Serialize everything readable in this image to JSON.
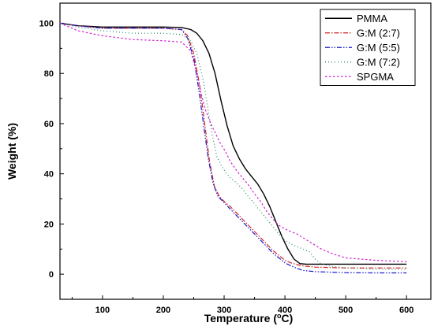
{
  "chart_data": {
    "type": "line",
    "xlabel_main": "Temperature (",
    "xlabel_degree": "o",
    "xlabel_unit": "C)",
    "ylabel": "Weight (%)",
    "xlim": [
      30,
      640
    ],
    "ylim": [
      -10,
      108
    ],
    "x_ticks": [
      100,
      200,
      300,
      400,
      500,
      600
    ],
    "y_ticks": [
      0,
      20,
      40,
      60,
      80,
      100
    ],
    "legend_position": "top-right",
    "grid": false,
    "series": [
      {
        "name": "PMMA",
        "color": "#000000",
        "dash": "",
        "x": [
          30,
          60,
          100,
          150,
          200,
          230,
          245,
          255,
          265,
          275,
          285,
          295,
          305,
          315,
          325,
          335,
          345,
          355,
          365,
          375,
          385,
          395,
          405,
          415,
          425,
          435,
          450,
          500,
          550,
          600
        ],
        "y": [
          100,
          99,
          98.5,
          98.5,
          98.5,
          98.3,
          97.5,
          96,
          93,
          88,
          80,
          69,
          59,
          51,
          46,
          42,
          39,
          36,
          32,
          27,
          21,
          15,
          10,
          6,
          4.2,
          4,
          4,
          4,
          4,
          4
        ]
      },
      {
        "name": "G:M (2:7)",
        "color": "#d42020",
        "dash": "6,2,1.5,2",
        "x": [
          30,
          60,
          100,
          150,
          200,
          230,
          240,
          250,
          260,
          268,
          276,
          284,
          292,
          300,
          310,
          320,
          330,
          340,
          350,
          360,
          370,
          380,
          390,
          400,
          410,
          420,
          430,
          450,
          500,
          550,
          600
        ],
        "y": [
          100,
          99,
          98,
          98,
          98,
          97.5,
          95,
          88,
          75,
          60,
          45,
          35,
          31,
          29,
          27,
          24.5,
          22,
          19.5,
          17,
          14.5,
          12,
          9.5,
          7.5,
          5.5,
          4.5,
          3.8,
          3.3,
          2.8,
          2.5,
          2.5,
          2.5
        ]
      },
      {
        "name": "G:M (5:5)",
        "color": "#1818c8",
        "dash": "6,2,1.5,2,1.5,2",
        "x": [
          30,
          60,
          100,
          150,
          200,
          230,
          240,
          250,
          258,
          266,
          274,
          282,
          290,
          300,
          310,
          320,
          330,
          340,
          350,
          360,
          370,
          380,
          390,
          400,
          410,
          420,
          430,
          450,
          500,
          550,
          600
        ],
        "y": [
          100,
          99,
          98,
          98,
          98,
          97.5,
          94,
          86,
          74,
          60,
          46,
          36,
          31,
          28.5,
          26,
          23.5,
          21,
          18.5,
          16,
          13.5,
          11,
          8.5,
          6.5,
          4.5,
          3.3,
          2.3,
          1.5,
          1,
          0.6,
          0.5,
          0.5
        ]
      },
      {
        "name": "G:M (7:2)",
        "color": "#1f8a5a",
        "dash": "1,3",
        "x": [
          30,
          60,
          100,
          150,
          200,
          230,
          245,
          255,
          265,
          272,
          280,
          288,
          296,
          304,
          312,
          320,
          330,
          340,
          350,
          360,
          370,
          380,
          390,
          400,
          410,
          420,
          430,
          440,
          450,
          460,
          480,
          500,
          550,
          600
        ],
        "y": [
          100,
          98.5,
          97,
          96,
          96,
          95.5,
          93,
          88,
          78,
          68,
          56,
          47,
          43,
          40,
          38,
          36.5,
          34,
          31,
          28,
          25,
          22,
          19,
          16,
          13.5,
          12,
          11,
          10,
          9,
          6,
          4,
          3,
          2.5,
          2,
          2
        ]
      },
      {
        "name": "SPGMA",
        "color": "#d020d0",
        "dash": "2.5,2.5",
        "x": [
          30,
          60,
          100,
          150,
          200,
          230,
          245,
          255,
          262,
          270,
          278,
          286,
          294,
          302,
          310,
          320,
          330,
          340,
          350,
          360,
          370,
          380,
          390,
          400,
          420,
          440,
          460,
          480,
          500,
          550,
          600
        ],
        "y": [
          100,
          97,
          95,
          93.5,
          93,
          92.5,
          89,
          80,
          72,
          65,
          60,
          56,
          52,
          49,
          45,
          41.5,
          38.5,
          35.5,
          32,
          29,
          25,
          22,
          19.5,
          18,
          16,
          13,
          10,
          8,
          6.5,
          5.5,
          5
        ]
      }
    ]
  }
}
